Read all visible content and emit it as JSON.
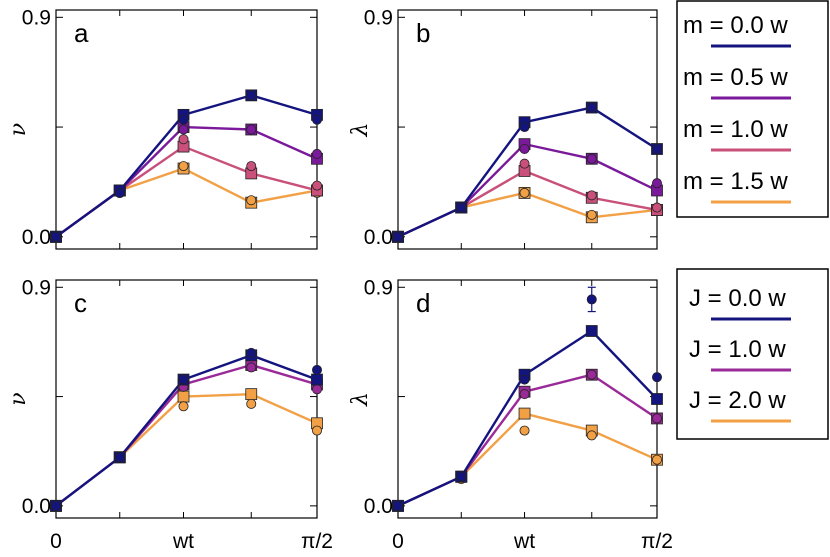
{
  "colors": {
    "navy": "#14147f",
    "purple": "#7a1a9a",
    "pink": "#c8507a",
    "orange": "#f2a046",
    "purple2": "#9a2a98"
  },
  "legend_top": {
    "entries": [
      {
        "label": "m = 0.0 w",
        "color": "#14147f"
      },
      {
        "label": "m = 0.5 w",
        "color": "#7a1a9a"
      },
      {
        "label": "m = 1.0 w",
        "color": "#c8507a"
      },
      {
        "label": "m = 1.5 w",
        "color": "#f2a046"
      }
    ]
  },
  "legend_bottom": {
    "entries": [
      {
        "label": "J = 0.0 w",
        "color": "#14147f"
      },
      {
        "label": "J = 1.0 w",
        "color": "#9a2a98"
      },
      {
        "label": "J = 2.0 w",
        "color": "#f2a046"
      }
    ]
  },
  "chart_data": [
    {
      "type": "line",
      "panel": "a",
      "ylabel": "ν",
      "x": [
        0,
        1,
        2,
        3,
        4
      ],
      "xtick_labels": [
        "0",
        "wt",
        "π/2"
      ],
      "ytick_labels": [
        "0.0",
        "0.9"
      ],
      "ylim": [
        -0.05,
        0.93
      ],
      "series": [
        {
          "name": "m = 0.0 w",
          "color": "#14147f",
          "squares": [
            0.0,
            0.19,
            0.5,
            0.58,
            0.5
          ],
          "circles": [
            0.0,
            0.18,
            0.48,
            0.58,
            0.48
          ]
        },
        {
          "name": "m = 0.5 w",
          "color": "#7a1a9a",
          "squares": [
            0.0,
            0.19,
            0.45,
            0.44,
            0.32
          ],
          "circles": [
            0.0,
            0.18,
            0.44,
            0.44,
            0.34
          ]
        },
        {
          "name": "m = 1.0 w",
          "color": "#c8507a",
          "squares": [
            0.0,
            0.19,
            0.37,
            0.26,
            0.19
          ],
          "circles": [
            0.0,
            0.18,
            0.4,
            0.29,
            0.21
          ]
        },
        {
          "name": "m = 1.5 w",
          "color": "#f2a046",
          "squares": [
            0.0,
            0.19,
            0.28,
            0.14,
            0.19
          ],
          "circles": [
            0.0,
            0.18,
            0.29,
            0.15,
            0.18
          ]
        }
      ]
    },
    {
      "type": "line",
      "panel": "b",
      "ylabel": "λ",
      "x": [
        0,
        1,
        2,
        3,
        4
      ],
      "xtick_labels": [
        "0",
        "wt",
        "π/2"
      ],
      "ytick_labels": [
        "0.0",
        "0.9"
      ],
      "ylim": [
        -0.05,
        0.93
      ],
      "series": [
        {
          "name": "m = 0.0 w",
          "color": "#14147f",
          "squares": [
            0.0,
            0.12,
            0.47,
            0.53,
            0.36
          ],
          "circles": [
            0.0,
            0.12,
            0.45,
            0.53,
            0.36
          ]
        },
        {
          "name": "m = 0.5 w",
          "color": "#7a1a9a",
          "squares": [
            0.0,
            0.12,
            0.38,
            0.32,
            0.19
          ],
          "circles": [
            0.0,
            0.12,
            0.36,
            0.32,
            0.22
          ]
        },
        {
          "name": "m = 1.0 w",
          "color": "#c8507a",
          "squares": [
            0.0,
            0.12,
            0.27,
            0.16,
            0.11
          ],
          "circles": [
            0.0,
            0.12,
            0.3,
            0.17,
            0.12
          ]
        },
        {
          "name": "m = 1.5 w",
          "color": "#f2a046",
          "squares": [
            0.0,
            0.12,
            0.18,
            0.08,
            0.11
          ],
          "circles": [
            0.0,
            0.12,
            0.18,
            0.09,
            0.11
          ]
        }
      ]
    },
    {
      "type": "line",
      "panel": "c",
      "ylabel": "ν",
      "x": [
        0,
        1,
        2,
        3,
        4
      ],
      "xtick_labels": [
        "0",
        "wt",
        "π/2"
      ],
      "ytick_labels": [
        "0.0",
        "0.9"
      ],
      "ylim": [
        -0.05,
        0.93
      ],
      "series": [
        {
          "name": "J = 0.0 w",
          "color": "#14147f",
          "squares": [
            0.0,
            0.2,
            0.52,
            0.62,
            0.52
          ],
          "circles": [
            0.0,
            0.2,
            0.52,
            0.63,
            0.56
          ]
        },
        {
          "name": "J = 1.0 w",
          "color": "#9a2a98",
          "squares": [
            0.0,
            0.2,
            0.5,
            0.58,
            0.5
          ],
          "circles": [
            0.0,
            0.2,
            0.49,
            0.57,
            0.48
          ]
        },
        {
          "name": "J = 2.0 w",
          "color": "#f2a046",
          "squares": [
            0.0,
            0.2,
            0.45,
            0.46,
            0.34
          ],
          "circles": [
            0.0,
            0.2,
            0.41,
            0.42,
            0.31
          ]
        }
      ]
    },
    {
      "type": "line",
      "panel": "d",
      "ylabel": "λ",
      "x": [
        0,
        1,
        2,
        3,
        4
      ],
      "xtick_labels": [
        "0",
        "wt",
        "π/2"
      ],
      "ytick_labels": [
        "0.0",
        "0.9"
      ],
      "ylim": [
        -0.05,
        0.93
      ],
      "series": [
        {
          "name": "J = 0.0 w",
          "color": "#14147f",
          "squares": [
            0.0,
            0.12,
            0.54,
            0.72,
            0.44
          ],
          "circles": [
            0.0,
            0.12,
            0.52,
            0.85,
            0.53
          ],
          "error_point": {
            "x": 3,
            "y": 0.85,
            "err": 0.05
          }
        },
        {
          "name": "J = 1.0 w",
          "color": "#9a2a98",
          "squares": [
            0.0,
            0.12,
            0.47,
            0.54,
            0.36
          ],
          "circles": [
            0.0,
            0.12,
            0.46,
            0.54,
            0.36
          ]
        },
        {
          "name": "J = 2.0 w",
          "color": "#f2a046",
          "squares": [
            0.0,
            0.12,
            0.38,
            0.31,
            0.19
          ],
          "circles": [
            0.0,
            0.11,
            0.31,
            0.29,
            0.19
          ]
        }
      ]
    }
  ]
}
